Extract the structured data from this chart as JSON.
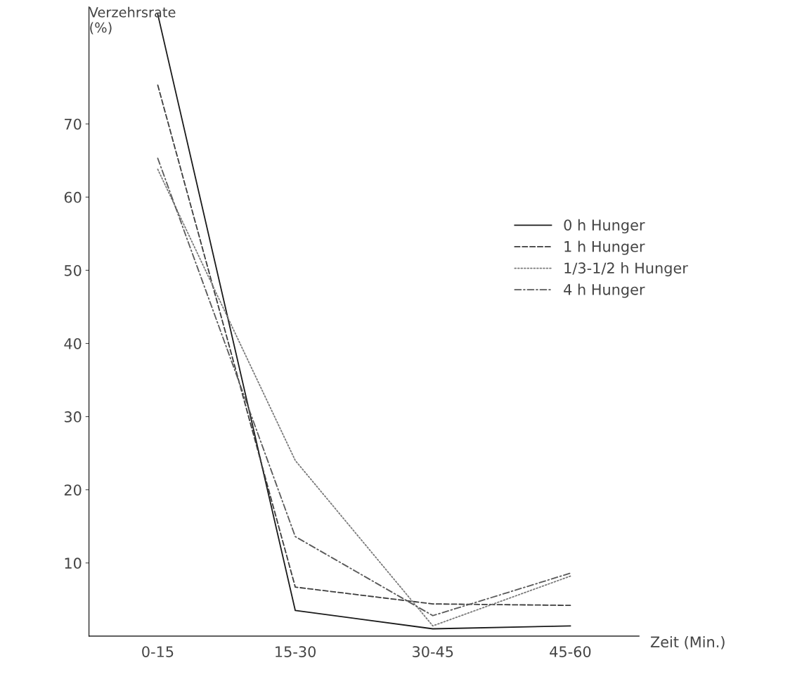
{
  "chart_data": {
    "type": "line",
    "ylabel": "Verzehrsrate\n(%)",
    "xlabel": "Zeit (Min.)",
    "categories": [
      "0-15",
      "15-30",
      "30-45",
      "45-60"
    ],
    "ylim": [
      0,
      86
    ],
    "yticks": [
      10,
      20,
      30,
      40,
      50,
      60,
      70
    ],
    "grid": false,
    "legend": "right",
    "marker": "none",
    "series": [
      {
        "name": "0 h Hunger",
        "color": "#1a1a1a",
        "line_style": "solid",
        "values": [
          85,
          3.5,
          1,
          1.4
        ]
      },
      {
        "name": "1 h Hunger",
        "color": "#3c3c3c",
        "line_style": "dashed",
        "values": [
          75.3,
          6.7,
          4.4,
          4.2
        ]
      },
      {
        "name": "1/3-1/2 h Hunger",
        "color": "#7a7a7a",
        "line_style": "dotted",
        "values": [
          63.8,
          24,
          1.4,
          8.2
        ]
      },
      {
        "name": "4 h Hunger",
        "color": "#5a5a5a",
        "line_style": "dashdot",
        "values": [
          65.3,
          13.6,
          2.8,
          8.6
        ]
      }
    ]
  }
}
